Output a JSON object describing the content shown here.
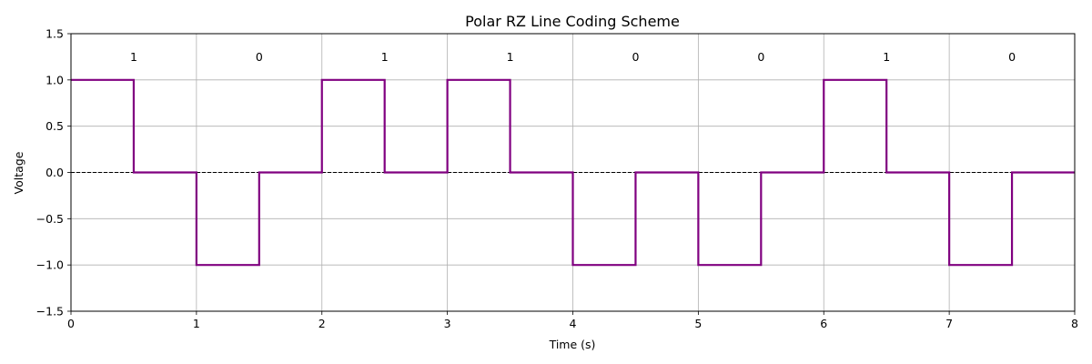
{
  "chart_data": {
    "type": "line",
    "title": "Polar RZ Line Coding Scheme",
    "xlabel": "Time (s)",
    "ylabel": "Voltage",
    "xlim": [
      0,
      8
    ],
    "ylim": [
      -1.5,
      1.5
    ],
    "x_ticks": [
      0,
      1,
      2,
      3,
      4,
      5,
      6,
      7,
      8
    ],
    "x_tick_labels": [
      "0",
      "1",
      "2",
      "3",
      "4",
      "5",
      "6",
      "7",
      "8"
    ],
    "y_ticks": [
      -1.5,
      -1.0,
      -0.5,
      0.0,
      0.5,
      1.0,
      1.5
    ],
    "y_tick_labels": [
      "−1.5",
      "−1.0",
      "−0.5",
      "0.0",
      "0.5",
      "1.0",
      "1.5"
    ],
    "grid": true,
    "bits": [
      "1",
      "0",
      "1",
      "1",
      "0",
      "0",
      "1",
      "0"
    ],
    "bit_label_y": 1.25,
    "series": [
      {
        "color": "#800080",
        "step": true,
        "x": [
          0,
          0.5,
          1,
          1.5,
          2,
          2.5,
          3,
          3.5,
          4,
          4.5,
          5,
          5.5,
          6,
          6.5,
          7,
          7.5,
          8
        ],
        "y": [
          1,
          0,
          -1,
          0,
          1,
          0,
          1,
          0,
          -1,
          0,
          -1,
          0,
          1,
          0,
          -1,
          0,
          0
        ]
      }
    ],
    "reference_line": {
      "y": 0,
      "style": "dashed",
      "color": "#000000"
    }
  }
}
